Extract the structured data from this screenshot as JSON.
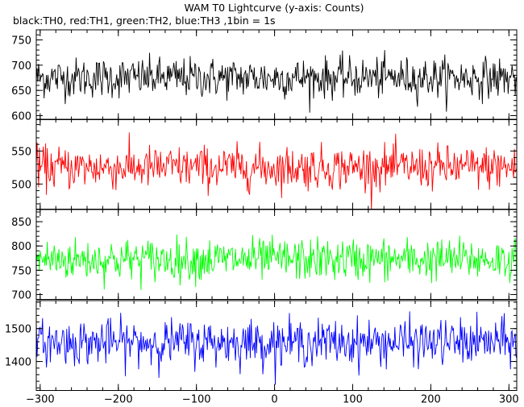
{
  "title": "WAM T0 Lightcurve (y-axis: Counts)",
  "subtitle": "black:TH0, red:TH1, green:TH2, blue:TH3 ,1bin = 1s",
  "chart_data": {
    "type": "line",
    "x_range": [
      -305,
      310
    ],
    "x_ticks": [
      -300,
      -200,
      -100,
      0,
      100,
      200,
      300
    ],
    "bin_seconds": 1,
    "panels": [
      {
        "name": "TH0",
        "color": "#000000",
        "ylim": [
          592,
          770
        ],
        "y_ticks": [
          600,
          650,
          700,
          750
        ],
        "mean": 675,
        "spread": 22
      },
      {
        "name": "TH1",
        "color": "#ff0000",
        "ylim": [
          462,
          598
        ],
        "y_ticks": [
          500,
          550
        ],
        "mean": 525,
        "spread": 18
      },
      {
        "name": "TH2",
        "color": "#00ff00",
        "ylim": [
          690,
          875
        ],
        "y_ticks": [
          700,
          750,
          800,
          850
        ],
        "mean": 772,
        "spread": 24
      },
      {
        "name": "TH3",
        "color": "#0000ff",
        "ylim": [
          1312,
          1585
        ],
        "y_ticks": [
          1400,
          1500
        ],
        "mean": 1458,
        "spread": 38
      }
    ]
  }
}
